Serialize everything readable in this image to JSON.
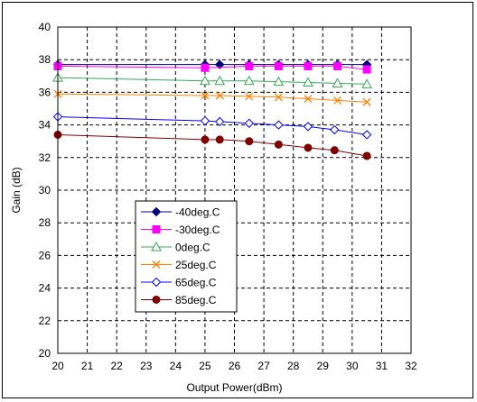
{
  "chart_data": {
    "type": "line",
    "xlabel": "Output Power(dBm)",
    "ylabel": "Gain (dB)",
    "xlim": [
      20,
      32
    ],
    "ylim": [
      20,
      40
    ],
    "x_ticks": [
      "20",
      "21",
      "22",
      "23",
      "24",
      "25",
      "26",
      "27",
      "28",
      "29",
      "30",
      "31",
      "32"
    ],
    "y_ticks": [
      "20",
      "22",
      "24",
      "26",
      "28",
      "30",
      "32",
      "34",
      "36",
      "38",
      "40"
    ],
    "grid": "dashed",
    "legend_position": "lower-left inside",
    "series": [
      {
        "name": "-40deg.C",
        "color": "#000080",
        "marker": "diamond-filled",
        "x": [
          20,
          25,
          25.5,
          26.5,
          27.5,
          28.5,
          29.5,
          30.5
        ],
        "y": [
          37.7,
          37.7,
          37.7,
          37.7,
          37.7,
          37.7,
          37.7,
          37.7
        ]
      },
      {
        "name": "-30deg.C",
        "color": "#ff00ff",
        "marker": "square-filled",
        "x": [
          20,
          25,
          26.5,
          27.5,
          28.5,
          29.5,
          30.5
        ],
        "y": [
          37.6,
          37.5,
          37.6,
          37.6,
          37.6,
          37.6,
          37.4
        ]
      },
      {
        "name": "0deg.C",
        "color": "#33aa55",
        "marker": "triangle-open",
        "x": [
          20,
          25,
          25.5,
          26.5,
          27.5,
          28.5,
          29.5,
          30.5
        ],
        "y": [
          36.9,
          36.7,
          36.7,
          36.7,
          36.65,
          36.6,
          36.55,
          36.5
        ]
      },
      {
        "name": "25deg.C",
        "color": "#ff7f00",
        "marker": "x",
        "x": [
          20,
          25,
          25.5,
          26.5,
          27.5,
          28.5,
          29.5,
          30.5
        ],
        "y": [
          35.9,
          35.8,
          35.8,
          35.75,
          35.7,
          35.6,
          35.5,
          35.4
        ]
      },
      {
        "name": "65deg.C",
        "color": "#0000ff",
        "marker": "diamond-open",
        "x": [
          20,
          25,
          25.5,
          26.5,
          27.5,
          28.5,
          29.4,
          30.5
        ],
        "y": [
          34.5,
          34.25,
          34.2,
          34.1,
          34.0,
          33.9,
          33.7,
          33.4
        ]
      },
      {
        "name": "85deg.C",
        "color": "#800000",
        "marker": "circle-filled",
        "x": [
          20,
          25,
          25.5,
          26.5,
          27.5,
          28.5,
          29.4,
          30.5
        ],
        "y": [
          33.4,
          33.1,
          33.1,
          33.0,
          32.8,
          32.6,
          32.45,
          32.1
        ]
      }
    ]
  }
}
